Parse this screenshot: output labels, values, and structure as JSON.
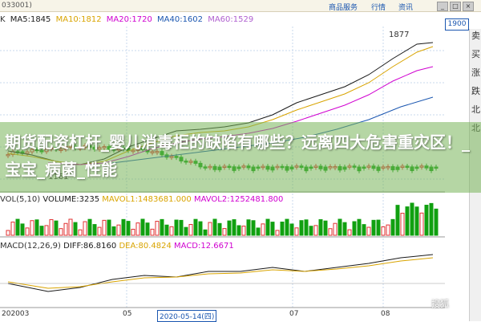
{
  "header": {
    "code": "033001)",
    "menus": [
      "商品服务",
      "行情",
      "资讯"
    ]
  },
  "ma_legend": {
    "k": "K",
    "ma5": {
      "label": "MA5:1845",
      "color": "#1a1a1a"
    },
    "ma10": {
      "label": "MA10:1812",
      "color": "#d9a400"
    },
    "ma20": {
      "label": "MA20:1720",
      "color": "#d000d0"
    },
    "ma40": {
      "label": "MA40:1602",
      "color": "#1a56b0"
    },
    "ma60": {
      "label": "MA60:1529",
      "color": "#b060d0"
    }
  },
  "price_box": "1900",
  "peak_label": "1877",
  "low_label": "1161",
  "sidebar": [
    "卖",
    "买",
    "涨",
    "跌",
    "北",
    "北"
  ],
  "vol_legend": {
    "vol": "VOL(5,10)",
    "volume": "VOLUME:3235",
    "mavol1": "MAVOL1:1483681.000",
    "mavol2": "MAVOL2:1252481.800"
  },
  "macd_legend": {
    "macd": "MACD(12,26,9)",
    "diff": "DIFF:86.8160",
    "dea": "DEA:80.4824",
    "macdv": "MACD:12.6671"
  },
  "xaxis": {
    "labels": [
      "202003",
      "05",
      "2020-05-14(四)",
      "07",
      "08"
    ]
  },
  "overlay": {
    "title": "期货配资杠杆_婴儿消毒柜的缺陷有哪些？远离四大危害重灾区！_宝宝_病菌_性能"
  },
  "watermark": "搜狐",
  "colors": {
    "up": "#e03030",
    "down": "#10a010",
    "ma5": "#1a1a1a",
    "ma10": "#d9a400",
    "ma20": "#d000d0",
    "ma40": "#1a56b0"
  }
}
